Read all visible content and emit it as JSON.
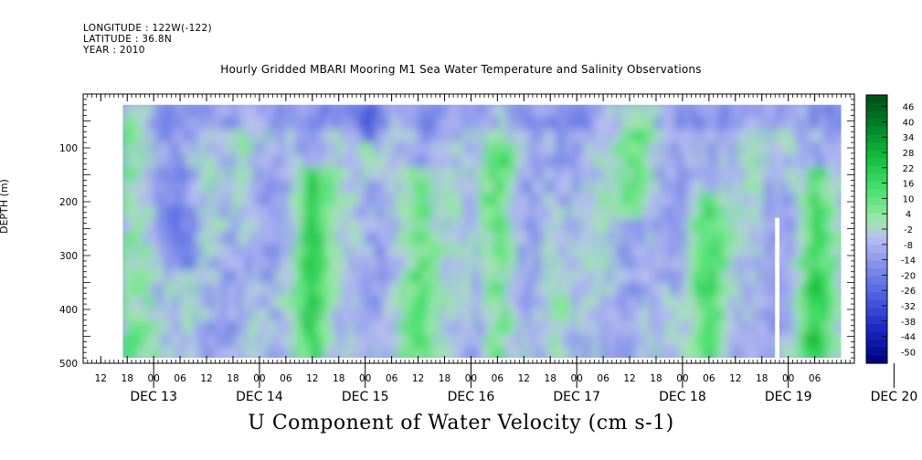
{
  "header": {
    "longitude": "LONGITUDE : 122W(-122)",
    "latitude": "LATITUDE : 36.8N",
    "year": "YEAR : 2010"
  },
  "chart_data": {
    "type": "heatmap",
    "title": "Hourly Gridded MBARI Mooring M1 Sea Water Temperature and Salinity Observations",
    "xlabel": "U Component of Water Velocity (cm s-1)",
    "ylabel": "DEPTH (m)",
    "x_range": [
      "2010-12-13T08:00",
      "2010-12-20T15:00"
    ],
    "data_range": [
      "2010-12-13T17:00",
      "2010-12-20T12:00"
    ],
    "missing_interval": [
      "2010-12-19T21:00",
      "2010-12-19T22:00"
    ],
    "ylim": [
      500,
      0
    ],
    "depth_data_range": [
      20,
      490
    ],
    "y_ticks": [
      "100",
      "200",
      "300",
      "400",
      "500"
    ],
    "x_hour_ticks": [
      "12",
      "18",
      "00",
      "06",
      "12",
      "18",
      "00",
      "06",
      "12",
      "18",
      "00",
      "06",
      "12",
      "18",
      "00",
      "06",
      "12",
      "18",
      "00",
      "06",
      "12",
      "18",
      "00",
      "06",
      "12",
      "18",
      "00",
      "06"
    ],
    "x_day_labels": [
      "DEC 13",
      "DEC 14",
      "DEC 15",
      "DEC 16",
      "DEC 17",
      "DEC 18",
      "DEC 19",
      "DEC 20"
    ],
    "colorbar": {
      "labels": [
        "46",
        "40",
        "34",
        "28",
        "22",
        "16",
        "10",
        "4",
        "-2",
        "-8",
        "-14",
        "-20",
        "-26",
        "-32",
        "-38",
        "-44",
        "-50"
      ],
      "range": [
        -50,
        52
      ],
      "low_color": "#000080",
      "mid_color": "#b9bff0",
      "high_color": "#004d1a"
    },
    "velocity_bands_cm_s": [
      {
        "time": "2010-12-13T18:00",
        "depth_range": [
          20,
          490
        ],
        "value": 10
      },
      {
        "time": "2010-12-14T06:00",
        "depth_range": [
          150,
          300
        ],
        "value": -20
      },
      {
        "time": "2010-12-15T12:00",
        "depth_range": [
          150,
          490
        ],
        "value": 22
      },
      {
        "time": "2010-12-16T12:00",
        "depth_range": [
          150,
          490
        ],
        "value": 16
      },
      {
        "time": "2010-12-17T06:00",
        "depth_range": [
          100,
          490
        ],
        "value": 12
      },
      {
        "time": "2010-12-18T12:00",
        "depth_range": [
          20,
          200
        ],
        "value": 10
      },
      {
        "time": "2010-12-19T06:00",
        "depth_range": [
          200,
          490
        ],
        "value": 16
      },
      {
        "time": "2010-12-20T06:00",
        "depth_range": [
          150,
          490
        ],
        "value": 22
      },
      {
        "time": "2010-12-16T00:00",
        "depth_range": [
          20,
          60
        ],
        "value": -26
      }
    ]
  }
}
